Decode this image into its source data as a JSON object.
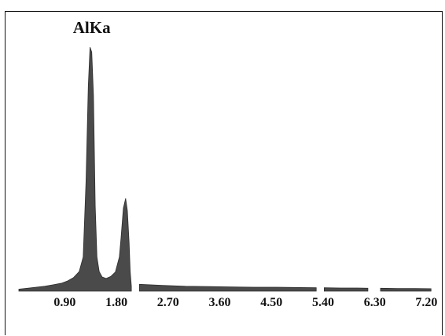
{
  "chart_data": {
    "type": "area",
    "title": "",
    "xlabel": "",
    "ylabel": "",
    "xlim": [
      0.1,
      7.4
    ],
    "ylim": [
      0,
      100
    ],
    "grid": false,
    "legend": "none",
    "fill_color": "#4a4a4a",
    "x_ticks": [
      "0.90",
      "1.80",
      "2.70",
      "3.60",
      "4.50",
      "5.40",
      "6.30",
      "7.20"
    ],
    "x_tick_values": [
      0.9,
      1.8,
      2.7,
      3.6,
      4.5,
      5.4,
      6.3,
      7.2
    ],
    "annotations": [
      {
        "text": "AlKa",
        "x": 1.37
      }
    ],
    "series": [
      {
        "x": [
          0.1,
          0.25,
          0.4,
          0.55,
          0.7,
          0.85,
          0.95,
          1.05,
          1.15,
          1.22,
          1.27,
          1.31,
          1.34,
          1.37,
          1.4,
          1.43,
          1.46,
          1.5,
          1.55,
          1.62,
          1.7,
          1.78,
          1.85,
          1.88,
          1.92,
          1.96,
          1.99,
          2.02,
          2.04,
          2.06
        ],
        "y": [
          0.8,
          1.2,
          1.6,
          2.0,
          2.6,
          3.3,
          4.2,
          5.5,
          8.0,
          14,
          45,
          84,
          100,
          98,
          80,
          35,
          14,
          8,
          5.8,
          5.2,
          6.0,
          7.8,
          14,
          22,
          34,
          38,
          33,
          20,
          8,
          2
        ]
      },
      {
        "x": [
          2.2,
          2.6,
          3.0,
          3.4,
          3.8,
          4.2,
          4.6,
          5.0,
          5.28
        ],
        "y": [
          2.8,
          2.4,
          2.0,
          1.9,
          1.7,
          1.6,
          1.6,
          1.5,
          1.4
        ]
      },
      {
        "x": [
          5.42,
          5.7,
          6.0,
          6.18
        ],
        "y": [
          1.4,
          1.3,
          1.3,
          1.2
        ]
      },
      {
        "x": [
          6.4,
          6.7,
          7.0,
          7.28
        ],
        "y": [
          1.2,
          1.1,
          1.1,
          1.0
        ]
      }
    ]
  }
}
